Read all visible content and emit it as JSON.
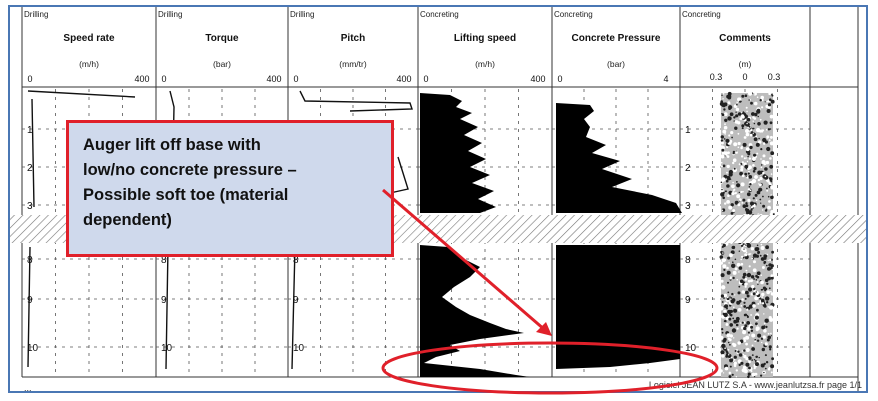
{
  "tracks": [
    {
      "category": "Drilling",
      "title": "Speed rate",
      "unit": "(m/h)",
      "ticks": [
        "0",
        "400"
      ]
    },
    {
      "category": "Drilling",
      "title": "Torque",
      "unit": "(bar)",
      "ticks": [
        "0",
        "400"
      ]
    },
    {
      "category": "Drilling",
      "title": "Pitch",
      "unit": "(mm/tr)",
      "ticks": [
        "0",
        "400"
      ]
    },
    {
      "category": "Concreting",
      "title": "Lifting speed",
      "unit": "(m/h)",
      "ticks": [
        "0",
        "400"
      ]
    },
    {
      "category": "Concreting",
      "title": "Concrete Pressure",
      "unit": "(bar)",
      "ticks": [
        "0",
        "4"
      ]
    },
    {
      "category": "Concreting",
      "title": "Comments",
      "unit": "(m)",
      "ticks": [
        "0.3",
        "0",
        "0.3"
      ]
    }
  ],
  "depth_labels_top": [
    "1",
    "2",
    "3"
  ],
  "depth_labels_bottom": [
    "8",
    "9",
    "10"
  ],
  "footer": "Logiciel JEAN LUTZ S.A - www.jeanlutzsa.fr  page 1/1",
  "callout": {
    "lines": [
      "Auger lift off base with",
      "low/no concrete pressure –",
      "Possible soft toe (material",
      "dependent)"
    ]
  },
  "colors": {
    "frame": "#4a77b4",
    "callout_fill": "#cfd9ec",
    "callout_border": "#e0202a",
    "highlight": "#e0202a"
  }
}
